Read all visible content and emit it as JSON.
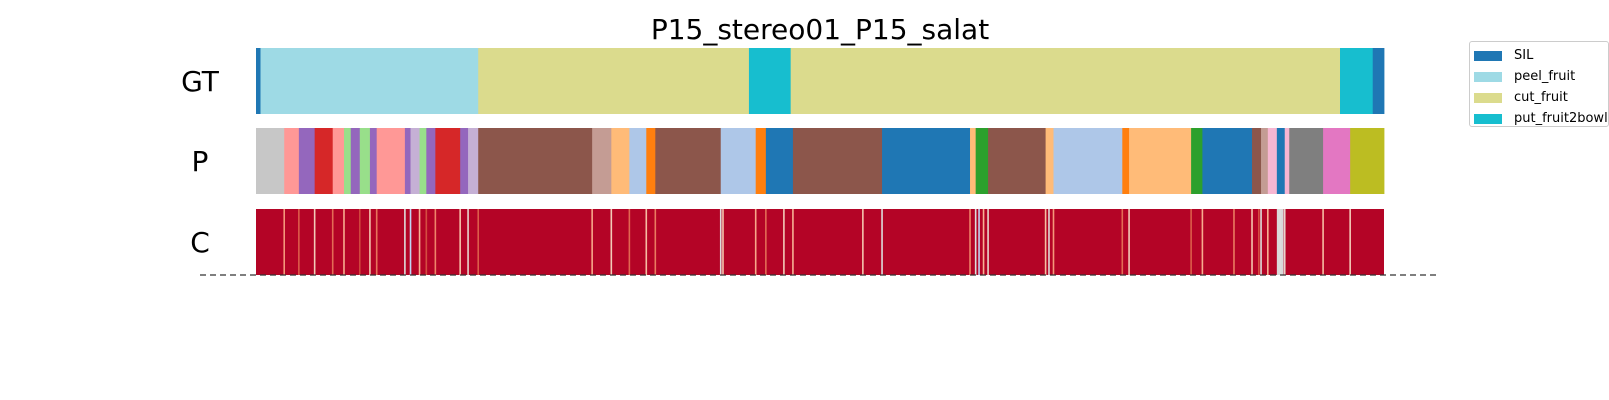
{
  "chart_data": {
    "type": "segmentation",
    "title": "P15_stereo01_P15_salat",
    "rows": [
      {
        "label": "GT",
        "segments": [
          {
            "start": 0.0,
            "end": 0.004,
            "color": "#1f77b4"
          },
          {
            "start": 0.004,
            "end": 0.197,
            "color": "#9edae5"
          },
          {
            "start": 0.197,
            "end": 0.437,
            "color": "#dbdb8d"
          },
          {
            "start": 0.437,
            "end": 0.474,
            "color": "#17becf"
          },
          {
            "start": 0.474,
            "end": 0.961,
            "color": "#dbdb8d"
          },
          {
            "start": 0.961,
            "end": 0.99,
            "color": "#17becf"
          },
          {
            "start": 0.99,
            "end": 1.0,
            "color": "#1f77b4"
          }
        ]
      },
      {
        "label": "P",
        "segments": [
          {
            "start": 0.0,
            "end": 0.025,
            "color": "#c7c7c7"
          },
          {
            "start": 0.025,
            "end": 0.038,
            "color": "#ff9896"
          },
          {
            "start": 0.038,
            "end": 0.052,
            "color": "#9467bd"
          },
          {
            "start": 0.052,
            "end": 0.068,
            "color": "#d62728"
          },
          {
            "start": 0.068,
            "end": 0.078,
            "color": "#ff9896"
          },
          {
            "start": 0.078,
            "end": 0.084,
            "color": "#98df8a"
          },
          {
            "start": 0.084,
            "end": 0.092,
            "color": "#9467bd"
          },
          {
            "start": 0.092,
            "end": 0.101,
            "color": "#98df8a"
          },
          {
            "start": 0.101,
            "end": 0.107,
            "color": "#9467bd"
          },
          {
            "start": 0.107,
            "end": 0.132,
            "color": "#ff9896"
          },
          {
            "start": 0.132,
            "end": 0.137,
            "color": "#9467bd"
          },
          {
            "start": 0.137,
            "end": 0.145,
            "color": "#c5b0d5"
          },
          {
            "start": 0.145,
            "end": 0.151,
            "color": "#98df8a"
          },
          {
            "start": 0.151,
            "end": 0.159,
            "color": "#9467bd"
          },
          {
            "start": 0.159,
            "end": 0.181,
            "color": "#d62728"
          },
          {
            "start": 0.181,
            "end": 0.188,
            "color": "#9467bd"
          },
          {
            "start": 0.188,
            "end": 0.197,
            "color": "#c5b0d5"
          },
          {
            "start": 0.197,
            "end": 0.298,
            "color": "#8c564b"
          },
          {
            "start": 0.298,
            "end": 0.315,
            "color": "#c49c94"
          },
          {
            "start": 0.315,
            "end": 0.331,
            "color": "#ffbb78"
          },
          {
            "start": 0.331,
            "end": 0.346,
            "color": "#aec7e8"
          },
          {
            "start": 0.346,
            "end": 0.354,
            "color": "#ff7f0e"
          },
          {
            "start": 0.354,
            "end": 0.412,
            "color": "#8c564b"
          },
          {
            "start": 0.412,
            "end": 0.443,
            "color": "#aec7e8"
          },
          {
            "start": 0.443,
            "end": 0.452,
            "color": "#ff7f0e"
          },
          {
            "start": 0.452,
            "end": 0.476,
            "color": "#1f77b4"
          },
          {
            "start": 0.476,
            "end": 0.555,
            "color": "#8c564b"
          },
          {
            "start": 0.555,
            "end": 0.633,
            "color": "#1f77b4"
          },
          {
            "start": 0.633,
            "end": 0.638,
            "color": "#ffbb78"
          },
          {
            "start": 0.638,
            "end": 0.649,
            "color": "#2ca02c"
          },
          {
            "start": 0.649,
            "end": 0.7,
            "color": "#8c564b"
          },
          {
            "start": 0.7,
            "end": 0.707,
            "color": "#ffbb78"
          },
          {
            "start": 0.707,
            "end": 0.768,
            "color": "#aec7e8"
          },
          {
            "start": 0.768,
            "end": 0.774,
            "color": "#ff7f0e"
          },
          {
            "start": 0.774,
            "end": 0.829,
            "color": "#ffbb78"
          },
          {
            "start": 0.829,
            "end": 0.839,
            "color": "#2ca02c"
          },
          {
            "start": 0.839,
            "end": 0.883,
            "color": "#1f77b4"
          },
          {
            "start": 0.883,
            "end": 0.891,
            "color": "#8c564b"
          },
          {
            "start": 0.891,
            "end": 0.897,
            "color": "#c49c94"
          },
          {
            "start": 0.897,
            "end": 0.905,
            "color": "#f7b6d2"
          },
          {
            "start": 0.905,
            "end": 0.912,
            "color": "#1f77b4"
          },
          {
            "start": 0.912,
            "end": 0.916,
            "color": "#f7b6d2"
          },
          {
            "start": 0.916,
            "end": 0.946,
            "color": "#7f7f7f"
          },
          {
            "start": 0.946,
            "end": 0.97,
            "color": "#e377c2"
          },
          {
            "start": 0.97,
            "end": 1.0,
            "color": "#bcbd22"
          }
        ]
      },
      {
        "label": "C",
        "base_color": "#b40426",
        "lines": [
          {
            "pos": 0.025,
            "color": "#f4987a"
          },
          {
            "pos": 0.038,
            "color": "#dc5d4a"
          },
          {
            "pos": 0.052,
            "color": "#f2cbb7"
          },
          {
            "pos": 0.068,
            "color": "#e36c55"
          },
          {
            "pos": 0.078,
            "color": "#f7ac8e"
          },
          {
            "pos": 0.092,
            "color": "#d0473d"
          },
          {
            "pos": 0.101,
            "color": "#f4c5ad"
          },
          {
            "pos": 0.107,
            "color": "#e7745b"
          },
          {
            "pos": 0.132,
            "color": "#dddcdc"
          },
          {
            "pos": 0.137,
            "color": "#c0d4f5"
          },
          {
            "pos": 0.145,
            "color": "#f7b194"
          },
          {
            "pos": 0.151,
            "color": "#d44e41"
          },
          {
            "pos": 0.159,
            "color": "#ee8468"
          },
          {
            "pos": 0.181,
            "color": "#f5c1a9"
          },
          {
            "pos": 0.188,
            "color": "#e8d6cc"
          },
          {
            "pos": 0.197,
            "color": "#dc5d4a"
          },
          {
            "pos": 0.298,
            "color": "#f7a889"
          },
          {
            "pos": 0.315,
            "color": "#f2cbb7"
          },
          {
            "pos": 0.331,
            "color": "#e16751"
          },
          {
            "pos": 0.346,
            "color": "#f6bda2"
          },
          {
            "pos": 0.354,
            "color": "#ea7b60"
          },
          {
            "pos": 0.412,
            "color": "#dddcdc"
          },
          {
            "pos": 0.414,
            "color": "#f4c5ad"
          },
          {
            "pos": 0.443,
            "color": "#f7a889"
          },
          {
            "pos": 0.452,
            "color": "#e36c55"
          },
          {
            "pos": 0.468,
            "color": "#f2cbb7"
          },
          {
            "pos": 0.476,
            "color": "#f7b194"
          },
          {
            "pos": 0.555,
            "color": "#dddcdc"
          },
          {
            "pos": 0.538,
            "color": "#f4c5ad"
          },
          {
            "pos": 0.633,
            "color": "#ee8468"
          },
          {
            "pos": 0.638,
            "color": "#dddcdc"
          },
          {
            "pos": 0.641,
            "color": "#c0d4f5"
          },
          {
            "pos": 0.645,
            "color": "#f7b194"
          },
          {
            "pos": 0.649,
            "color": "#e8d6cc"
          },
          {
            "pos": 0.7,
            "color": "#f6bda2"
          },
          {
            "pos": 0.703,
            "color": "#dddcdc"
          },
          {
            "pos": 0.707,
            "color": "#f4987a"
          },
          {
            "pos": 0.768,
            "color": "#e36c55"
          },
          {
            "pos": 0.774,
            "color": "#f2cbb7"
          },
          {
            "pos": 0.829,
            "color": "#dc5d4a"
          },
          {
            "pos": 0.839,
            "color": "#f7ac8e"
          },
          {
            "pos": 0.867,
            "color": "#ea7b60"
          },
          {
            "pos": 0.883,
            "color": "#f4c5ad"
          },
          {
            "pos": 0.889,
            "color": "#d44e41"
          },
          {
            "pos": 0.891,
            "color": "#dddcdc"
          },
          {
            "pos": 0.897,
            "color": "#f7b194"
          },
          {
            "pos": 0.908,
            "color": "#dddcdc"
          },
          {
            "pos": 0.912,
            "color": "#e8d6cc"
          },
          {
            "pos": 0.946,
            "color": "#f6bda2"
          },
          {
            "pos": 0.97,
            "color": "#f2cbb7"
          }
        ],
        "gray_blocks": [
          {
            "start": 0.905,
            "end": 0.911,
            "color": "#d9d9d9"
          }
        ]
      }
    ],
    "legend": {
      "position": "upper-right",
      "entries": [
        {
          "label": "SIL",
          "color": "#1f77b4"
        },
        {
          "label": "peel_fruit",
          "color": "#9edae5"
        },
        {
          "label": "cut_fruit",
          "color": "#dbdb8d"
        },
        {
          "label": "put_fruit2bowl",
          "color": "#17becf"
        }
      ]
    }
  }
}
